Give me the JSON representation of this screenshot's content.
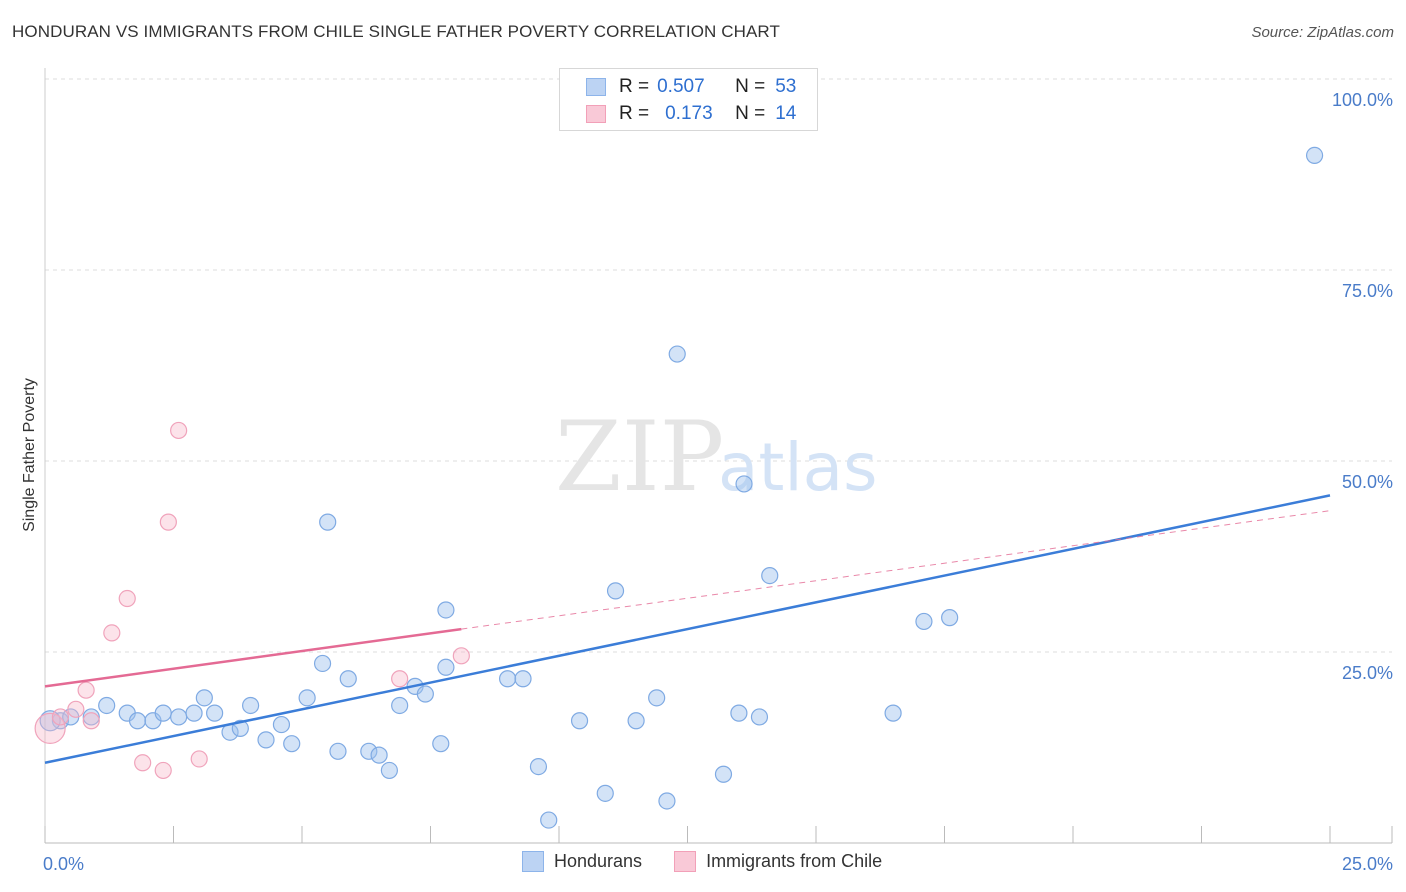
{
  "header": {
    "title": "HONDURAN VS IMMIGRANTS FROM CHILE SINGLE FATHER POVERTY CORRELATION CHART",
    "source": "Source: ZipAtlas.com"
  },
  "watermark": {
    "zip": "ZIP",
    "atlas": "atlas"
  },
  "legend": {
    "rows": [
      {
        "r_label": "R =",
        "r_value": "0.507",
        "n_label": "N =",
        "n_value": "53",
        "color": "#8db4ea"
      },
      {
        "r_label": "R =",
        "r_value": "0.173",
        "n_label": "N =",
        "n_value": "14",
        "color": "#f2a0b8"
      }
    ]
  },
  "bottom_legend": [
    {
      "label": "Hondurans",
      "color": "#8db4ea"
    },
    {
      "label": "Immigrants from Chile",
      "color": "#f2a0b8"
    }
  ],
  "chart_data": {
    "type": "scatter",
    "title": "HONDURAN VS IMMIGRANTS FROM CHILE SINGLE FATHER POVERTY CORRELATION CHART",
    "xlabel": "",
    "ylabel": "Single Father Poverty",
    "xlim": [
      0,
      25
    ],
    "ylim": [
      0,
      100
    ],
    "x_ticks": [
      "0.0%",
      "25.0%"
    ],
    "y_ticks": [
      {
        "value": 100,
        "label": "100.0%"
      },
      {
        "value": 75,
        "label": "75.0%"
      },
      {
        "value": 50,
        "label": "50.0%"
      },
      {
        "value": 25,
        "label": "25.0%"
      }
    ],
    "colors": {
      "hondurans": "#3b7dd8",
      "chile": "#e46a94",
      "axis_label": "#4a7cc9"
    },
    "series": [
      {
        "name": "Hondurans",
        "color": "#8db4ea",
        "points": [
          [
            0.3,
            16.0
          ],
          [
            0.5,
            16.5
          ],
          [
            0.9,
            16.5
          ],
          [
            1.2,
            18.0
          ],
          [
            1.6,
            17.0
          ],
          [
            1.8,
            16.0
          ],
          [
            2.1,
            16.0
          ],
          [
            2.3,
            17.0
          ],
          [
            2.6,
            16.5
          ],
          [
            2.9,
            17.0
          ],
          [
            3.1,
            19.0
          ],
          [
            3.3,
            17.0
          ],
          [
            3.6,
            14.5
          ],
          [
            3.8,
            15.0
          ],
          [
            4.0,
            18.0
          ],
          [
            4.3,
            13.5
          ],
          [
            4.6,
            15.5
          ],
          [
            4.8,
            13.0
          ],
          [
            5.1,
            19.0
          ],
          [
            5.4,
            23.5
          ],
          [
            5.7,
            12.0
          ],
          [
            5.5,
            42.0
          ],
          [
            5.9,
            21.5
          ],
          [
            6.3,
            12.0
          ],
          [
            6.5,
            11.5
          ],
          [
            6.7,
            9.5
          ],
          [
            6.9,
            18.0
          ],
          [
            7.2,
            20.5
          ],
          [
            7.4,
            19.5
          ],
          [
            7.7,
            13.0
          ],
          [
            7.8,
            23.0
          ],
          [
            7.8,
            30.5
          ],
          [
            9.0,
            21.5
          ],
          [
            9.3,
            21.5
          ],
          [
            9.6,
            10.0
          ],
          [
            9.8,
            3.0
          ],
          [
            10.4,
            16.0
          ],
          [
            10.9,
            6.5
          ],
          [
            11.1,
            33.0
          ],
          [
            11.5,
            16.0
          ],
          [
            11.9,
            19.0
          ],
          [
            12.1,
            5.5
          ],
          [
            12.3,
            64.0
          ],
          [
            13.2,
            9.0
          ],
          [
            13.5,
            17.0
          ],
          [
            13.6,
            47.0
          ],
          [
            13.9,
            16.5
          ],
          [
            14.1,
            35.0
          ],
          [
            16.5,
            17.0
          ],
          [
            17.1,
            29.0
          ],
          [
            17.6,
            29.5
          ],
          [
            24.7,
            90.0
          ],
          [
            0.1,
            16.0
          ]
        ]
      },
      {
        "name": "Immigrants from Chile",
        "color": "#f2a0b8",
        "points": [
          [
            0.1,
            15.0
          ],
          [
            0.3,
            16.5
          ],
          [
            0.6,
            17.5
          ],
          [
            0.9,
            16.0
          ],
          [
            0.8,
            20.0
          ],
          [
            1.3,
            27.5
          ],
          [
            1.6,
            32.0
          ],
          [
            1.9,
            10.5
          ],
          [
            2.3,
            9.5
          ],
          [
            2.4,
            42.0
          ],
          [
            2.6,
            54.0
          ],
          [
            3.0,
            11.0
          ],
          [
            6.9,
            21.5
          ],
          [
            8.1,
            24.5
          ]
        ]
      }
    ],
    "trendlines": [
      {
        "series": "Hondurans",
        "from": [
          0,
          10.5
        ],
        "to": [
          25,
          45.5
        ],
        "style": "solid"
      },
      {
        "series": "Immigrants from Chile",
        "from": [
          0,
          20.5
        ],
        "to": [
          8.1,
          28.0
        ],
        "style": "solid"
      },
      {
        "series": "Immigrants from Chile",
        "from": [
          8.1,
          28.0
        ],
        "to": [
          25,
          43.5
        ],
        "style": "dashed"
      }
    ]
  }
}
